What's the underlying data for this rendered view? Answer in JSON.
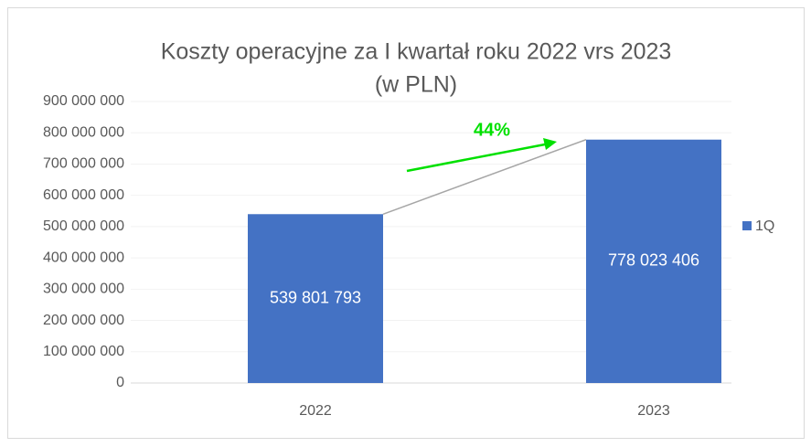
{
  "chart_data": {
    "type": "bar",
    "title": [
      "Koszty operacyjne za I kwartał roku 2022 vrs 2023",
      "(w PLN)"
    ],
    "categories": [
      "2022",
      "2023"
    ],
    "series": [
      {
        "name": "1Q",
        "color": "#4472c4",
        "values": [
          539801793,
          778023406
        ],
        "value_labels": [
          "539 801 793",
          "778 023 406"
        ]
      }
    ],
    "ylim": [
      0,
      900000000
    ],
    "yticks": [
      {
        "value": 0,
        "label": "0"
      },
      {
        "value": 100000000,
        "label": "100 000 000"
      },
      {
        "value": 200000000,
        "label": "200 000 000"
      },
      {
        "value": 300000000,
        "label": "300 000 000"
      },
      {
        "value": 400000000,
        "label": "400 000 000"
      },
      {
        "value": 500000000,
        "label": "500 000 000"
      },
      {
        "value": 600000000,
        "label": "600 000 000"
      },
      {
        "value": 700000000,
        "label": "700 000 000"
      },
      {
        "value": 800000000,
        "label": "800 000 000"
      },
      {
        "value": 900000000,
        "label": "900 000 000"
      }
    ],
    "grid": true,
    "legend": "right",
    "annotation": {
      "text": "44%",
      "color": "#00e000"
    }
  }
}
